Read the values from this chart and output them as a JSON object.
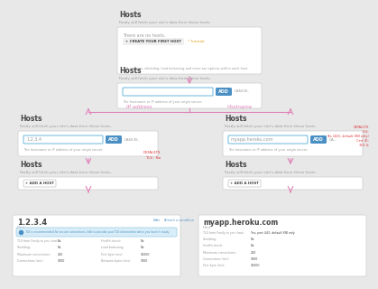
{
  "bg_color": "#e8e8e8",
  "white": "#ffffff",
  "border_color": "#cccccc",
  "blue_border": "#7bbfe0",
  "btn_blue": "#4a90c4",
  "text_dark": "#444444",
  "text_gray": "#999999",
  "text_orange": "#e8a020",
  "text_blue": "#4a90c4",
  "arrow_color": "#e080b8",
  "label_color": "#e080b8",
  "red_text": "#dd3333",
  "title_text": "Hosts",
  "subtitle_text": "Fastly will fetch your site's data from these hosts.",
  "box1_empty": "There are no hosts.",
  "box1_btn": "+ CREATE YOUR FIRST HOST",
  "box1_hint": "* Tutorial",
  "box1_footer": "TLS settings, shielding, load balancing and more are options within each host.",
  "box2_btn": "ADD",
  "box2_cancel": "CANCEL",
  "box2_hint": "The hostname or IP address of your origin server.",
  "label_ip": "IP address",
  "label_hostname": "Hostname",
  "ip_example": "1.2.3.4",
  "hostname_example": "myapp.heroku.com",
  "add_host_btn": "+ ADD A HOST",
  "details_ip": "1.2.3.4",
  "details_hostname": "myapp.heroku.com",
  "details_host_label": "Host",
  "tls_warning": "TLS is recommended for secure connections. Edit to provide your TLS information when you have it ready.",
  "left_note1": "DEFAULTS",
  "left_note2": "TLS : No",
  "right_notes": [
    "DEFAULTS",
    "TLS:",
    "Yes (443, default SNI only)",
    "Cert ID:",
    "301 &"
  ],
  "detail_left_rows": [
    [
      "TLS from Fastly to your host:",
      "No"
    ],
    [
      "Shielding:",
      "No"
    ],
    [
      "Health check:",
      "No"
    ],
    [
      "Load balancing:",
      "No"
    ]
  ],
  "detail_left_rows2": [
    [
      "Maximum connections:",
      "200"
    ],
    [
      "Connections (ms):",
      "1000"
    ],
    [
      "First byte (ms):",
      "15000"
    ],
    [
      "Between bytes (ms):",
      "1000"
    ]
  ],
  "detail_right_rows": [
    [
      "TLS from Fastly to your host:",
      "Yes, port 443, default SNI only"
    ],
    [
      "Shielding:",
      "No"
    ],
    [
      "Health check:",
      "No"
    ]
  ],
  "detail_right_rows2": [
    [
      "Maximum connections:",
      "200"
    ],
    [
      "Connections (ms):",
      "1000"
    ],
    [
      "First byte (ms):",
      "15000"
    ]
  ],
  "edit_link": "Edit",
  "attach_link": "Attach a condition"
}
